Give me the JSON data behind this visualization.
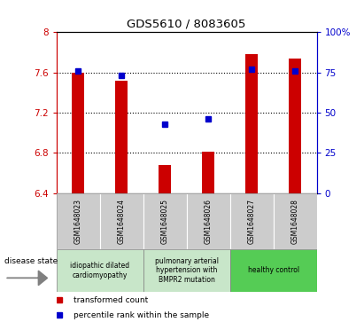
{
  "title": "GDS5610 / 8083605",
  "samples": [
    "GSM1648023",
    "GSM1648024",
    "GSM1648025",
    "GSM1648026",
    "GSM1648027",
    "GSM1648028"
  ],
  "bar_values": [
    7.6,
    7.52,
    6.68,
    6.81,
    7.78,
    7.74
  ],
  "dot_values": [
    76,
    73,
    43,
    46,
    77,
    76
  ],
  "ylim_left": [
    6.4,
    8.0
  ],
  "ylim_right": [
    0,
    100
  ],
  "yticks_left": [
    6.4,
    6.8,
    7.2,
    7.6,
    8.0
  ],
  "yticks_right": [
    0,
    25,
    50,
    75,
    100
  ],
  "ytick_labels_left": [
    "6.4",
    "6.8",
    "7.2",
    "7.6",
    "8"
  ],
  "ytick_labels_right": [
    "0",
    "25",
    "50",
    "75",
    "100%"
  ],
  "bar_color": "#cc0000",
  "dot_color": "#0000cc",
  "bar_base": 6.4,
  "disease_groups": [
    {
      "label": "idiopathic dilated\ncardiomyopathy",
      "indices": [
        0,
        1
      ],
      "color": "#c8e6c9"
    },
    {
      "label": "pulmonary arterial\nhypertension with\nBMPR2 mutation",
      "indices": [
        2,
        3
      ],
      "color": "#c8e6c9"
    },
    {
      "label": "healthy control",
      "indices": [
        4,
        5
      ],
      "color": "#55cc55"
    }
  ],
  "legend_bar_label": "transformed count",
  "legend_dot_label": "percentile rank within the sample",
  "disease_state_label": "disease state",
  "label_color_left": "#cc0000",
  "label_color_right": "#0000cc",
  "sample_box_color": "#cccccc",
  "grid_yticks": [
    6.8,
    7.2,
    7.6
  ]
}
